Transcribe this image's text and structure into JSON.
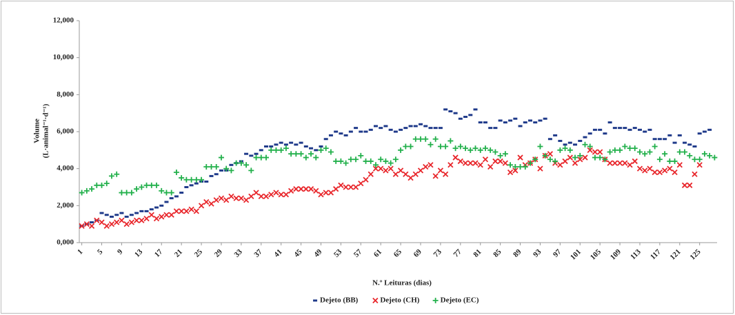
{
  "chart_data": {
    "type": "scatter",
    "x_label": "N.º Leituras (dias)",
    "y_label": [
      "Volume",
      "(L·animal⁻¹·d⁻¹)"
    ],
    "x": [
      1,
      2,
      3,
      4,
      5,
      6,
      7,
      8,
      9,
      10,
      11,
      12,
      13,
      14,
      15,
      16,
      17,
      18,
      19,
      20,
      21,
      22,
      23,
      24,
      25,
      26,
      27,
      28,
      29,
      30,
      31,
      32,
      33,
      34,
      35,
      36,
      37,
      38,
      39,
      40,
      41,
      42,
      43,
      44,
      45,
      46,
      47,
      48,
      49,
      50,
      51,
      52,
      53,
      54,
      55,
      56,
      57,
      58,
      59,
      60,
      61,
      62,
      63,
      64,
      65,
      66,
      67,
      68,
      69,
      70,
      71,
      72,
      73,
      74,
      75,
      76,
      77,
      78,
      79,
      80,
      81,
      82,
      83,
      84,
      85,
      86,
      87,
      88,
      89,
      90,
      91,
      92,
      93,
      94,
      95,
      96,
      97,
      98,
      99,
      100,
      101,
      102,
      103,
      104,
      105,
      106,
      107,
      108,
      109,
      110,
      111,
      112,
      113,
      114,
      115,
      116,
      117,
      118,
      119,
      120,
      121,
      122,
      123,
      124,
      125,
      126,
      127,
      128
    ],
    "xlim": [
      0.5,
      128.5
    ],
    "xticks": [
      1,
      5,
      9,
      13,
      17,
      21,
      25,
      29,
      33,
      37,
      41,
      45,
      49,
      53,
      57,
      61,
      65,
      69,
      73,
      77,
      81,
      85,
      89,
      93,
      97,
      101,
      105,
      109,
      113,
      117,
      121,
      125
    ],
    "ylim": [
      0,
      12000
    ],
    "yticks": [
      {
        "value": 0,
        "label": "0,000"
      },
      {
        "value": 2000,
        "label": "2,000"
      },
      {
        "value": 4000,
        "label": "4,000"
      },
      {
        "value": 6000,
        "label": "6,000"
      },
      {
        "value": 8000,
        "label": "8,000"
      },
      {
        "value": 10000,
        "label": "10,000"
      },
      {
        "value": 12000,
        "label": "12,000"
      }
    ],
    "grid": false,
    "legend": "bottom",
    "series": [
      {
        "name": "Dejeto (BB)",
        "color": "#1f3a8a",
        "marker": "dash",
        "values": [
          900,
          1000,
          1100,
          1200,
          1600,
          1500,
          1400,
          1500,
          1600,
          1400,
          1500,
          1600,
          1700,
          1700,
          1800,
          1900,
          2000,
          2200,
          2400,
          2500,
          2700,
          3000,
          3100,
          3200,
          3300,
          3300,
          3600,
          3700,
          3900,
          3900,
          4200,
          4300,
          4400,
          4800,
          4700,
          4800,
          5000,
          5200,
          5200,
          5300,
          5400,
          5300,
          5400,
          5300,
          5400,
          5200,
          5100,
          5000,
          5200,
          5600,
          5800,
          6000,
          5900,
          5800,
          6000,
          6200,
          6000,
          6000,
          6100,
          6300,
          6200,
          6300,
          6100,
          6000,
          6100,
          6200,
          6300,
          6300,
          6400,
          6300,
          6200,
          6200,
          6200,
          7200,
          7100,
          7000,
          6700,
          6800,
          6900,
          7200,
          6500,
          6500,
          6200,
          6200,
          6600,
          6500,
          6600,
          6700,
          6300,
          6500,
          6600,
          6500,
          6600,
          6700,
          5600,
          5800,
          5500,
          5300,
          5400,
          5300,
          5500,
          5700,
          5900,
          6100,
          6100,
          5900,
          6500,
          6200,
          6200,
          6200,
          6100,
          6200,
          6100,
          6000,
          6100,
          5600,
          5600,
          5600,
          5800,
          5400,
          5800,
          5400,
          5300,
          5200,
          5900,
          6000,
          6100,
          null
        ]
      },
      {
        "name": "Dejeto (CH)",
        "color": "#e8262b",
        "marker": "cross",
        "values": [
          900,
          1000,
          900,
          1200,
          1100,
          900,
          1000,
          1100,
          1200,
          1000,
          1100,
          1200,
          1200,
          1300,
          1500,
          1300,
          1400,
          1500,
          1500,
          1700,
          1700,
          1700,
          1800,
          1700,
          2000,
          2200,
          2100,
          2300,
          2400,
          2300,
          2500,
          2400,
          2400,
          2300,
          2500,
          2700,
          2500,
          2500,
          2600,
          2700,
          2600,
          2600,
          2800,
          2900,
          2900,
          2900,
          2900,
          2800,
          2600,
          2700,
          2700,
          2900,
          3100,
          3000,
          3000,
          3000,
          3200,
          3400,
          3700,
          4000,
          4000,
          3900,
          4000,
          3700,
          3900,
          3700,
          3500,
          3700,
          3900,
          4100,
          4200,
          3600,
          3900,
          3700,
          4200,
          4600,
          4400,
          4300,
          4300,
          4300,
          4200,
          4500,
          4100,
          4400,
          4400,
          4300,
          3800,
          3900,
          4600,
          4200,
          4300,
          4500,
          4000,
          4700,
          4800,
          4300,
          4200,
          4400,
          4600,
          4300,
          4500,
          4600,
          5000,
          4900,
          4900,
          4500,
          4300,
          4300,
          4300,
          4300,
          4200,
          4400,
          4000,
          3900,
          4000,
          3800,
          3800,
          3900,
          4000,
          3800,
          4200,
          3100,
          3100,
          3700,
          4200,
          null,
          null,
          null
        ]
      },
      {
        "name": "Dejeto (EC)",
        "color": "#22b04b",
        "marker": "plus",
        "values": [
          2700,
          2800,
          2900,
          3100,
          3100,
          3200,
          3600,
          3700,
          2700,
          2700,
          2700,
          2900,
          3000,
          3100,
          3100,
          3100,
          2800,
          2700,
          2700,
          3800,
          3500,
          3400,
          3400,
          3400,
          3400,
          4100,
          4100,
          4100,
          4600,
          4000,
          3900,
          4300,
          4300,
          4200,
          3900,
          4600,
          4600,
          4600,
          5000,
          5000,
          5000,
          5100,
          4800,
          4800,
          4800,
          4600,
          4800,
          4600,
          5000,
          5100,
          4900,
          4400,
          4400,
          4300,
          4500,
          4500,
          4700,
          4400,
          4400,
          4200,
          4500,
          4400,
          4300,
          4500,
          5000,
          5200,
          5200,
          5600,
          5600,
          5600,
          5300,
          5600,
          5200,
          5200,
          5500,
          5100,
          5200,
          5100,
          5000,
          5100,
          5000,
          5100,
          5000,
          4900,
          4700,
          4800,
          4200,
          4100,
          4100,
          4100,
          4300,
          4500,
          5200,
          4700,
          4500,
          4400,
          5000,
          5100,
          5000,
          4600,
          4700,
          5300,
          5200,
          4600,
          4600,
          4500,
          4900,
          5000,
          5000,
          5200,
          5100,
          5100,
          4900,
          4800,
          4900,
          5200,
          4500,
          4800,
          4400,
          4400,
          4900,
          4900,
          4700,
          4500,
          4500,
          4800,
          4700,
          4600
        ]
      }
    ]
  }
}
